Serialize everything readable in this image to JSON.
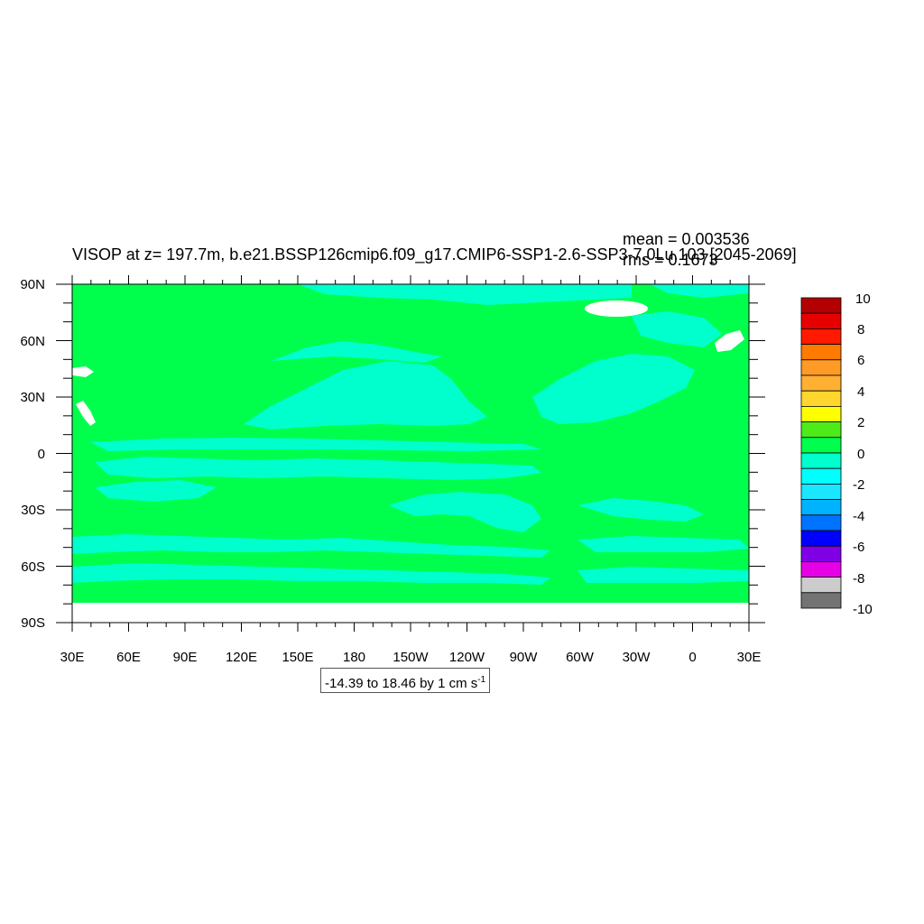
{
  "title": "VISOP at z= 197.7m, b.e21.BSSP126cmip6.f09_g17.CMIP6-SSP1-2.6-SSP3-7.0Lu.103 [2045-2069]",
  "stats": {
    "mean": "mean = 0.003536",
    "rms": "rms = 0.1673"
  },
  "range_text": {
    "main": "-14.39 to 18.46 by 1 cm s",
    "sup": "-1"
  },
  "lat_labels": [
    "90N",
    "60N",
    "30N",
    "0",
    "30S",
    "60S",
    "90S"
  ],
  "lon_labels": [
    "30E",
    "60E",
    "90E",
    "120E",
    "150E",
    "180",
    "150W",
    "120W",
    "90W",
    "60W",
    "30W",
    "0",
    "30E"
  ],
  "colorbar": {
    "labels": [
      "10",
      "8",
      "6",
      "4",
      "2",
      "0",
      "-2",
      "-4",
      "-6",
      "-8",
      "-10"
    ],
    "colors_top_to_bottom": [
      "#b30000",
      "#e60000",
      "#ff1a00",
      "#ff7a00",
      "#ff9a26",
      "#ffb033",
      "#ffd62e",
      "#ffff00",
      "#4deb1a",
      "#00ff4d",
      "#00ffcc",
      "#00ffff",
      "#1ae6ff",
      "#00b3ff",
      "#0073ff",
      "#0000ff",
      "#8000e6",
      "#e600e6",
      "#cccccc",
      "#737373"
    ]
  },
  "map_colors": {
    "zero_band": "#00ff4d",
    "minus_one_band": "#00ffcc",
    "missing": "#ffffff"
  }
}
